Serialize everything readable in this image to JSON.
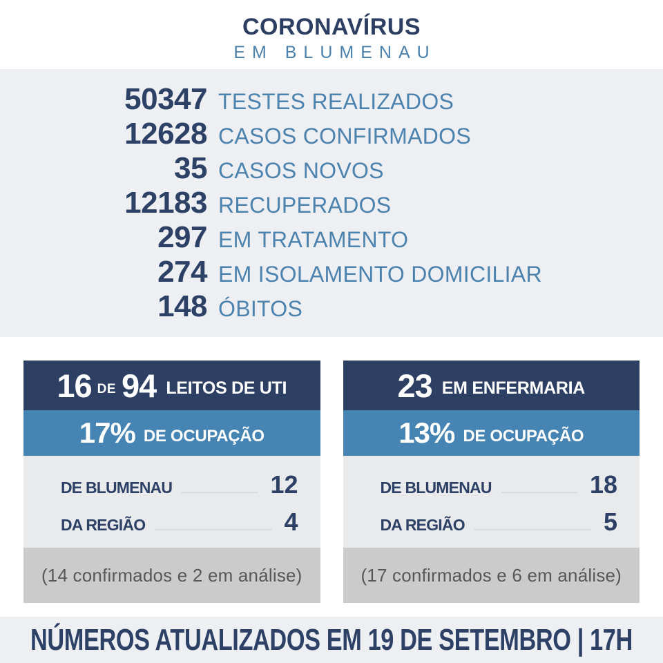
{
  "header": {
    "title": "CORONAVÍRUS",
    "subtitle": "EM BLUMENAU"
  },
  "stats": [
    {
      "value": "50347",
      "label": "TESTES REALIZADOS"
    },
    {
      "value": "12628",
      "label": "CASOS CONFIRMADOS"
    },
    {
      "value": "35",
      "label": "CASOS NOVOS"
    },
    {
      "value": "12183",
      "label": "RECUPERADOS"
    },
    {
      "value": "297",
      "label": "EM TRATAMENTO"
    },
    {
      "value": "274",
      "label": "EM ISOLAMENTO DOMICILIAR"
    },
    {
      "value": "148",
      "label": "ÓBITOS"
    }
  ],
  "cards": [
    {
      "value1": "16",
      "connector": "DE",
      "value2": "94",
      "title": "LEITOS DE UTI",
      "percent": "17%",
      "percent_label": "DE OCUPAÇÃO",
      "rows": [
        {
          "label": "DE BLUMENAU",
          "value": "12"
        },
        {
          "label": "DA REGIÃO",
          "value": "4"
        }
      ],
      "note": "(14 confirmados e 2 em análise)"
    },
    {
      "value1": "23",
      "title": "EM ENFERMARIA",
      "percent": "13%",
      "percent_label": "DE OCUPAÇÃO",
      "rows": [
        {
          "label": "DE BLUMENAU",
          "value": "18"
        },
        {
          "label": "DA REGIÃO",
          "value": "5"
        }
      ],
      "note": "(17 confirmados e 6 em análise)"
    }
  ],
  "footer": {
    "text": "NÚMEROS ATUALIZADOS EM 19 DE SETEMBRO | 17H"
  },
  "colors": {
    "navy": "#2d3f63",
    "steel_blue": "#4c82ae",
    "card_blue": "#4684b4",
    "band_bg": "#edeff3",
    "card_body_bg": "#e9eaec",
    "card_note_bg": "#cbcbcb",
    "note_text": "#58585a",
    "white": "#ffffff"
  },
  "chart_data": {
    "type": "table",
    "title": "CORONAVÍRUS EM BLUMENAU",
    "stats": [
      [
        "TESTES REALIZADOS",
        50347
      ],
      [
        "CASOS CONFIRMADOS",
        12628
      ],
      [
        "CASOS NOVOS",
        35
      ],
      [
        "RECUPERADOS",
        12183
      ],
      [
        "EM TRATAMENTO",
        297
      ],
      [
        "EM ISOLAMENTO DOMICILIAR",
        274
      ],
      [
        "ÓBITOS",
        148
      ]
    ],
    "leitos_uti": {
      "ocupados": 16,
      "total": 94,
      "ocupacao_pct": 17,
      "de_blumenau": 12,
      "da_regiao": 4,
      "confirmados": 14,
      "em_analise": 2
    },
    "enfermaria": {
      "ocupados": 23,
      "ocupacao_pct": 13,
      "de_blumenau": 18,
      "da_regiao": 5,
      "confirmados": 17,
      "em_analise": 6
    },
    "atualizado": "19 DE SETEMBRO | 17H"
  }
}
